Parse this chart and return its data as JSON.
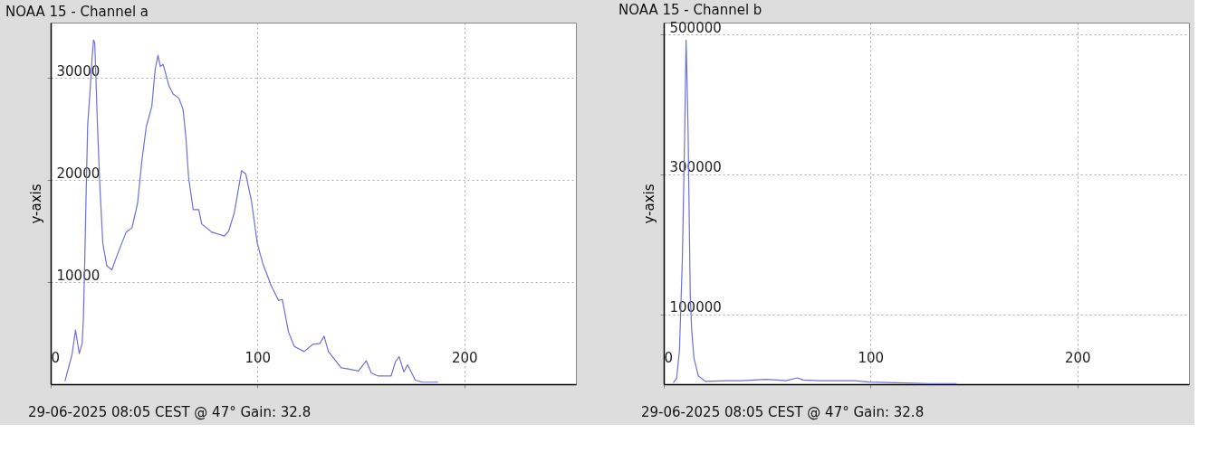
{
  "chart_data": [
    {
      "type": "line",
      "title": "NOAA 15 - Channel a",
      "ylabel": "y-axis",
      "annotations": [
        "29-06-2025 08:05 CEST @ 47° Gain: 32.8"
      ],
      "xlim": [
        0,
        254
      ],
      "xticks": [
        0,
        100,
        200
      ],
      "ylim": [
        0,
        35400
      ],
      "yticks": [
        10000,
        20000,
        30000
      ],
      "grid": true,
      "series": [
        {
          "color": "#7070d8",
          "x": [
            6.9,
            10.3,
            12,
            13.8,
            15.2,
            15.8,
            16.5,
            17.2,
            17.9,
            18.9,
            20,
            20.7,
            21.3,
            22,
            22.7,
            23.8,
            25.2,
            27.1,
            29.6,
            31.7,
            36.5,
            39.3,
            42,
            44.1,
            46.2,
            48.9,
            50.5,
            51.9,
            53,
            54.4,
            57.2,
            59.2,
            62,
            64,
            65.4,
            66.7,
            68.9,
            71.6,
            73,
            77.8,
            84,
            86.1,
            88.8,
            92.3,
            94.3,
            97.1,
            99.9,
            102.6,
            106.7,
            110.2,
            112,
            115,
            117.8,
            122.6,
            126.7,
            130.2,
            132.2,
            134.3,
            140.5,
            143.9,
            148.8,
            152.6,
            155,
            158.4,
            164.6,
            166.7,
            168.5,
            170.8,
            172.6,
            176.3,
            179.8,
            187.3
          ],
          "values": [
            300,
            2900,
            5300,
            3000,
            4000,
            6400,
            12400,
            19300,
            25500,
            28300,
            31900,
            33700,
            33400,
            29100,
            24900,
            19300,
            13800,
            11600,
            11200,
            12400,
            14900,
            15300,
            17700,
            21900,
            25200,
            27200,
            30800,
            32200,
            31100,
            31300,
            29200,
            28400,
            28000,
            26900,
            24100,
            20200,
            17100,
            17100,
            15700,
            14900,
            14500,
            15000,
            16800,
            20900,
            20600,
            17900,
            13800,
            11800,
            9600,
            8200,
            8300,
            5100,
            3700,
            3200,
            3900,
            4000,
            4700,
            3200,
            1600,
            1500,
            1300,
            2300,
            1100,
            800,
            800,
            2200,
            2700,
            1200,
            1900,
            400,
            200,
            200
          ]
        }
      ]
    },
    {
      "type": "line",
      "title": "NOAA 15 - Channel b",
      "ylabel": "y-axis",
      "annotations": [
        "29-06-2025 08:05 CEST @ 47° Gain: 32.8"
      ],
      "xlim": [
        0,
        254
      ],
      "xticks": [
        0,
        100,
        200
      ],
      "ylim": [
        0,
        517000
      ],
      "yticks": [
        100000,
        300000,
        500000
      ],
      "grid": true,
      "series": [
        {
          "color": "#7070d8",
          "x": [
            4.6,
            6.2,
            7.6,
            9,
            10.1,
            10.8,
            11.4,
            11.8,
            12.2,
            12.8,
            13.5,
            14.6,
            16.7,
            20.1,
            31.2,
            38.2,
            49.3,
            54.9,
            59,
            64.6,
            67.4,
            75.7,
            92.4,
            99.3,
            128.5,
            141.7
          ],
          "values": [
            2000,
            8000,
            49000,
            180000,
            355000,
            492000,
            416000,
            355000,
            261000,
            127000,
            78000,
            37000,
            12000,
            4000,
            5000,
            5000,
            7000,
            6000,
            5000,
            9000,
            6000,
            5000,
            5000,
            3000,
            1000,
            1000
          ]
        }
      ]
    }
  ]
}
